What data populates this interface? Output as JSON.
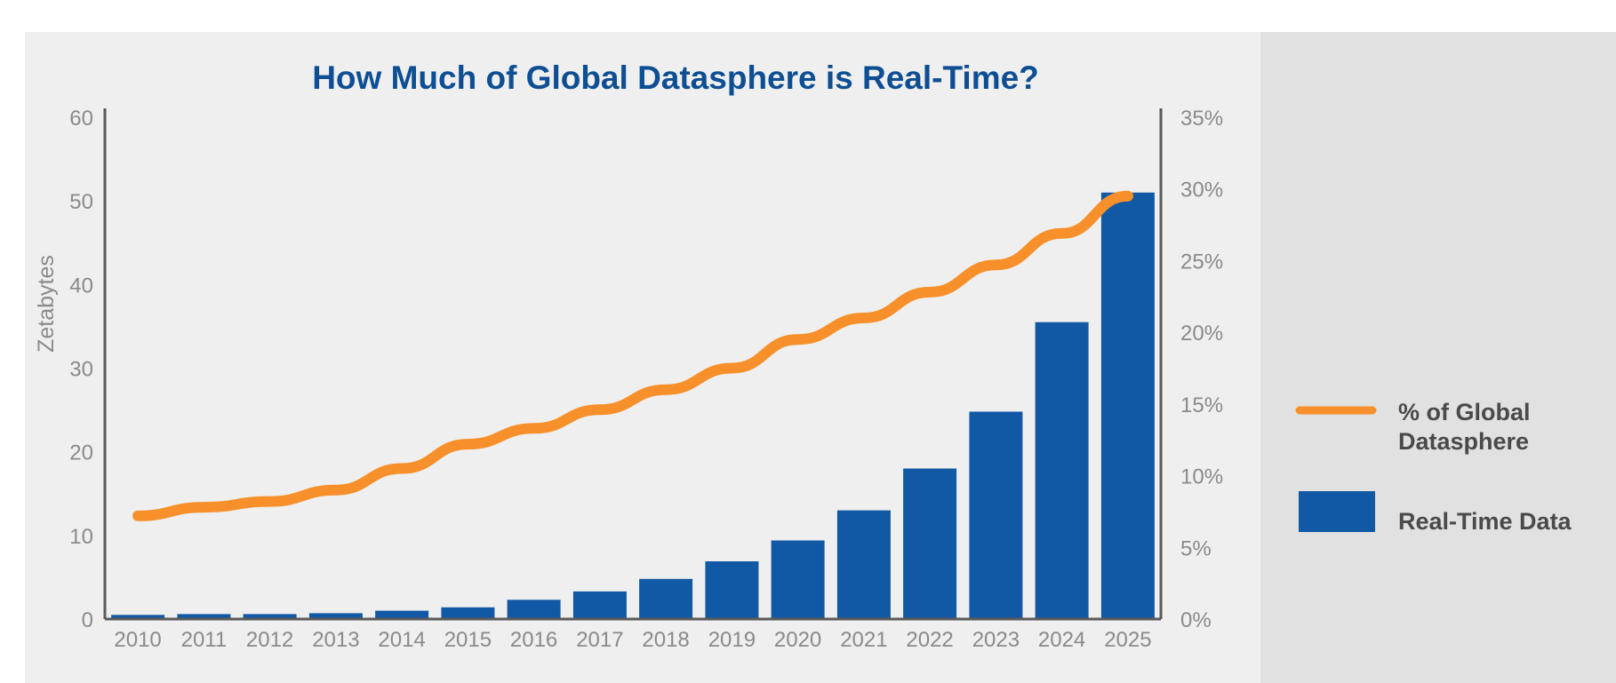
{
  "chart_data": {
    "type": "bar",
    "title": "How Much of Global Datasphere is Real-Time?",
    "ylabel": "Zetabytes",
    "ylim": [
      0,
      60
    ],
    "y_ticks": [
      "0",
      "10",
      "20",
      "30",
      "40",
      "50",
      "60"
    ],
    "y2lim": [
      0,
      35
    ],
    "y2_ticks": [
      "0%",
      "5%",
      "10%",
      "15%",
      "20%",
      "25%",
      "30%",
      "35%"
    ],
    "categories": [
      "2010",
      "2011",
      "2012",
      "2013",
      "2014",
      "2015",
      "2016",
      "2017",
      "2018",
      "2019",
      "2020",
      "2021",
      "2022",
      "2023",
      "2024",
      "2025"
    ],
    "series": [
      {
        "name": "Real-Time Data",
        "type": "bar",
        "axis": "left",
        "values": [
          0.5,
          0.6,
          0.6,
          0.7,
          1.0,
          1.4,
          2.3,
          3.3,
          4.8,
          6.9,
          9.4,
          13.0,
          18.0,
          24.8,
          35.5,
          51.0
        ]
      },
      {
        "name": "% of Global Datasphere",
        "type": "line",
        "axis": "right",
        "values": [
          7.2,
          7.8,
          8.2,
          9.0,
          10.5,
          12.2,
          13.3,
          14.6,
          16.0,
          17.5,
          19.5,
          21.0,
          22.8,
          24.7,
          26.9,
          29.5
        ]
      }
    ],
    "legend": {
      "placement": "right",
      "line_label_lines": [
        "% of Global",
        "Datasphere"
      ],
      "bar_label": "Real-Time Data"
    },
    "colors": {
      "bar": "#1259a5",
      "line": "#f7902a",
      "title": "#0e4e93",
      "axis": "#5a5a5a",
      "tick_text": "#8a8a8a",
      "legend_text": "#4a4a4a",
      "plot_background": "#efefef",
      "legend_background": "#e1e1e1"
    },
    "grid": false
  }
}
